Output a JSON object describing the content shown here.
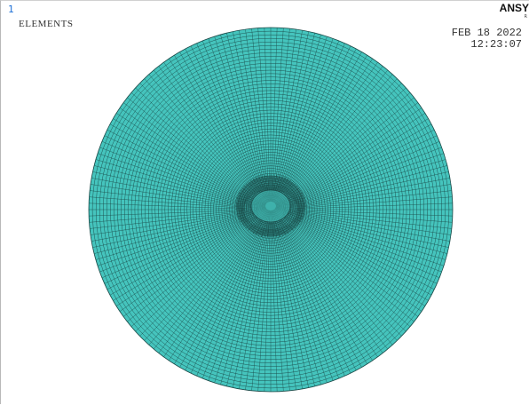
{
  "window": {
    "number": "1",
    "plot_label": "ELEMENTS"
  },
  "branding": {
    "logo": "ANSY",
    "logo_sub": "R"
  },
  "timestamp": {
    "date": "FEB 18 2022",
    "time": "12:23:07"
  },
  "colors": {
    "element_fill": "#45c4bd",
    "mesh_line": "#1a4a48",
    "background": "#ffffff",
    "window_number": "#1c6fd6"
  }
}
